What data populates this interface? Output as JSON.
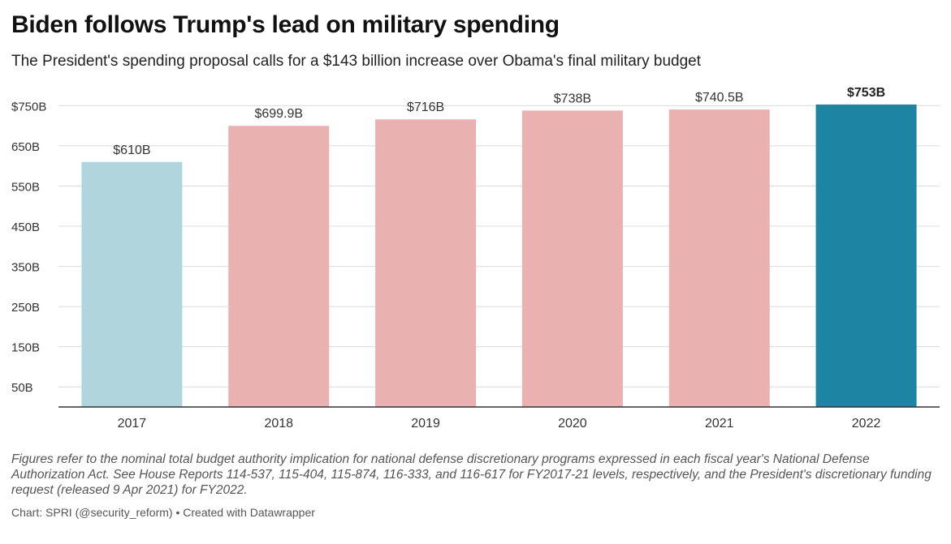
{
  "header": {
    "title": "Biden follows Trump's lead on military spending",
    "subtitle": "The President's spending proposal calls for a $143 billion increase over Obama's final military budget"
  },
  "chart_data": {
    "type": "bar",
    "categories": [
      "2017",
      "2018",
      "2019",
      "2020",
      "2021",
      "2022"
    ],
    "values": [
      610,
      699.9,
      716,
      738,
      740.5,
      753
    ],
    "value_labels": [
      "$610B",
      "$699.9B",
      "$716B",
      "$738B",
      "$740.5B",
      "$753B"
    ],
    "bar_colors": [
      "#b0d5dd",
      "#eab1b1",
      "#eab1b1",
      "#eab1b1",
      "#eab1b1",
      "#1e84a3"
    ],
    "highlight_index": 5,
    "ylim": [
      0,
      775
    ],
    "yticks": [
      50,
      150,
      250,
      350,
      450,
      550,
      650,
      750
    ],
    "ytick_labels": [
      "50B",
      "150B",
      "250B",
      "350B",
      "450B",
      "550B",
      "650B",
      "$750B"
    ],
    "grid": true
  },
  "footer": {
    "note": "Figures refer to the nominal total budget authority implication for national defense discretionary programs expressed in each fiscal year's National Defense Authorization Act. See House Reports 114-537, 115-404, 115-874, 116-333, and 116-617 for FY2017-21 levels, respectively, and the President's discretionary funding request (released 9 Apr 2021) for FY2022.",
    "credit": "Chart: SPRI (@security_reform) • Created with Datawrapper"
  }
}
